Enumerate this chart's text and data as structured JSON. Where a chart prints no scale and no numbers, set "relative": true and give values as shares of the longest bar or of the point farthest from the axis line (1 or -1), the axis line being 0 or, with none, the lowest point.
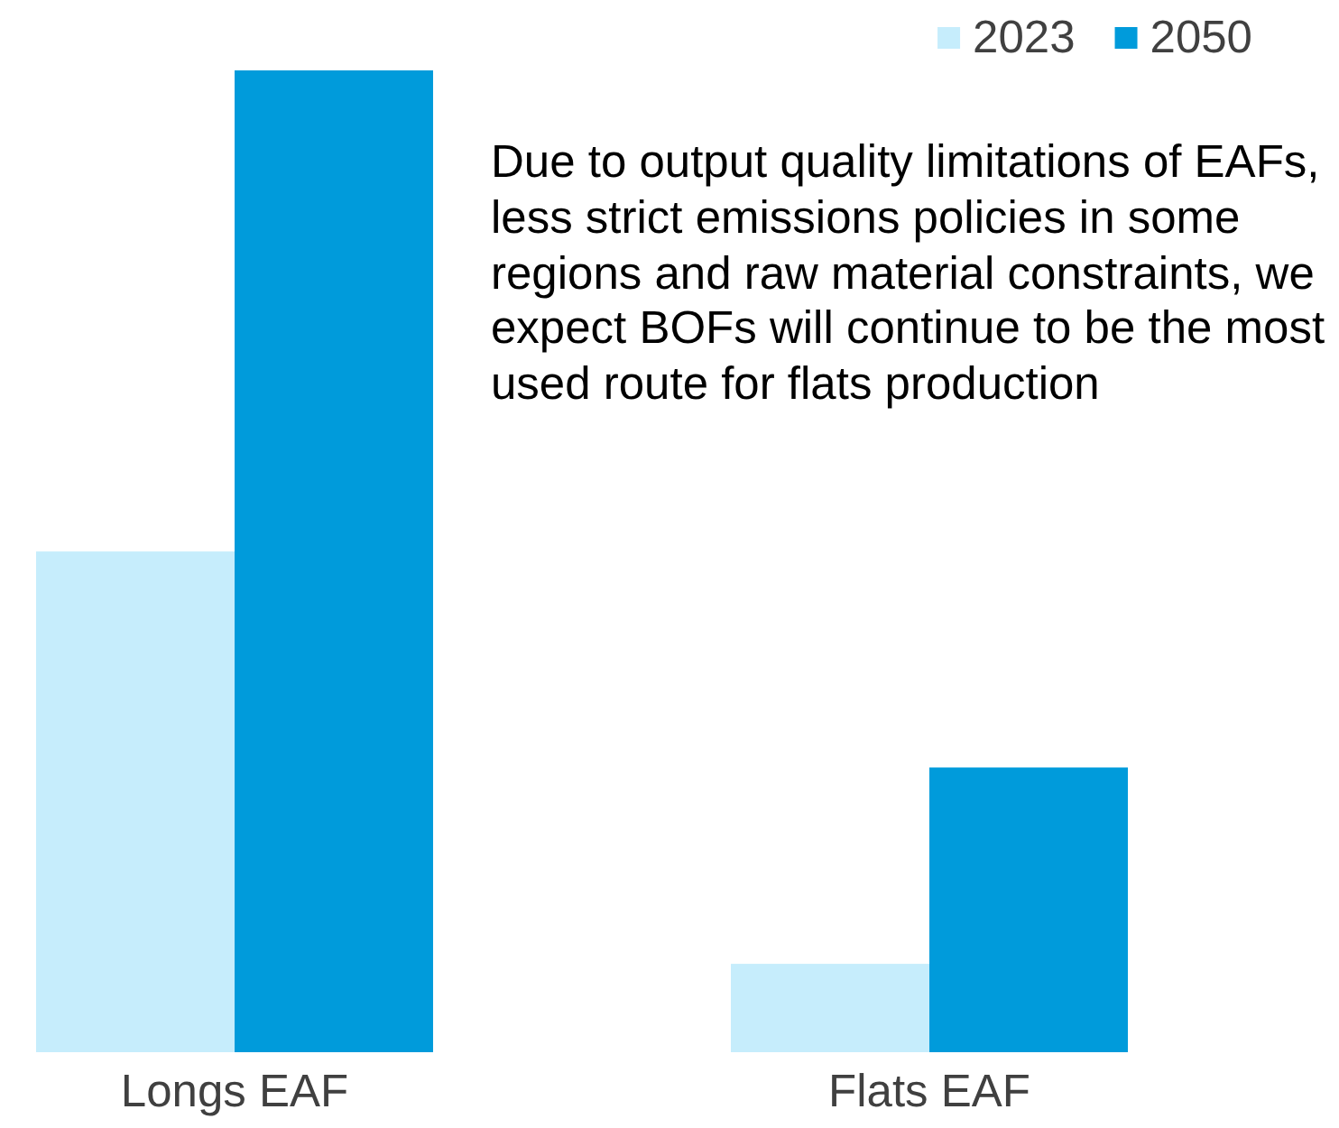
{
  "chart_data": {
    "type": "bar",
    "relative": true,
    "categories": [
      "Longs EAF",
      "Flats EAF"
    ],
    "series": [
      {
        "name": "2023",
        "color": "#c6edfc",
        "values": [
          0.51,
          0.09
        ]
      },
      {
        "name": "2050",
        "color": "#009bdb",
        "values": [
          1,
          0.29
        ]
      }
    ],
    "legend": "top right",
    "annotations": [
      "Due to output quality limitations of EAFs, less strict emissions policies in some regions and raw material constraints, we expect BOFs will continue to be the most used route for flats production"
    ]
  }
}
